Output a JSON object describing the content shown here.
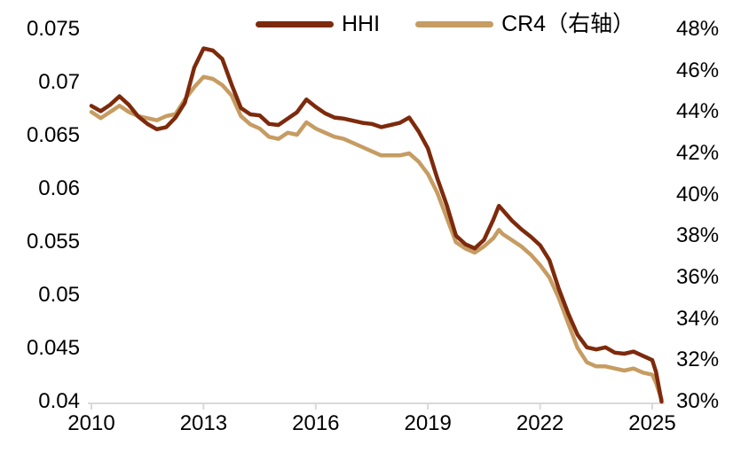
{
  "legend": {
    "hhi_label": "HHI",
    "cr4_label": "CR4（右轴）"
  },
  "chart_data": {
    "type": "line",
    "title": "",
    "grid": false,
    "legend_position": "top",
    "axis_line_color": "#D9D9D9",
    "text_color": "#000000",
    "x_tick_years": [
      2010,
      2013,
      2016,
      2019,
      2022,
      2025
    ],
    "x_tick_labels": [
      "2010",
      "2013",
      "2016",
      "2019",
      "2022",
      "2025"
    ],
    "x_range": [
      2010,
      2025.3
    ],
    "left_axis": {
      "min": 0.04,
      "max": 0.075,
      "labels": [
        "0.075",
        "0.07",
        "0.065",
        "0.06",
        "0.055",
        "0.05",
        "0.045",
        "0.04"
      ],
      "label_values": [
        0.075,
        0.07,
        0.065,
        0.06,
        0.055,
        0.05,
        0.045,
        0.04
      ]
    },
    "right_axis": {
      "min": 30,
      "max": 48,
      "labels": [
        "48%",
        "46%",
        "44%",
        "42%",
        "40%",
        "38%",
        "36%",
        "34%",
        "32%",
        "30%"
      ],
      "label_values": [
        48,
        46,
        44,
        42,
        40,
        38,
        36,
        34,
        32,
        30
      ]
    },
    "x": [
      2010.0,
      2010.25,
      2010.5,
      2010.75,
      2011.0,
      2011.25,
      2011.5,
      2011.75,
      2012.0,
      2012.25,
      2012.5,
      2012.75,
      2013.0,
      2013.25,
      2013.5,
      2013.75,
      2014.0,
      2014.25,
      2014.5,
      2014.75,
      2015.0,
      2015.25,
      2015.5,
      2015.75,
      2016.0,
      2016.25,
      2016.5,
      2016.75,
      2017.0,
      2017.25,
      2017.5,
      2017.75,
      2018.0,
      2018.25,
      2018.5,
      2018.75,
      2019.0,
      2019.25,
      2019.5,
      2019.75,
      2020.0,
      2020.25,
      2020.5,
      2020.75,
      2020.9,
      2021.0,
      2021.25,
      2021.5,
      2021.75,
      2022.0,
      2022.25,
      2022.5,
      2022.75,
      2023.0,
      2023.25,
      2023.5,
      2023.75,
      2024.0,
      2024.25,
      2024.5,
      2024.75,
      2025.0,
      2025.1,
      2025.25
    ],
    "series": [
      {
        "name": "HHI",
        "axis": "left",
        "color": "#7D2A0C",
        "values": [
          0.0678,
          0.0673,
          0.0679,
          0.0687,
          0.0679,
          0.0668,
          0.0661,
          0.0656,
          0.0658,
          0.0667,
          0.0681,
          0.0714,
          0.0732,
          0.073,
          0.0722,
          0.0698,
          0.0676,
          0.067,
          0.0669,
          0.0661,
          0.066,
          0.0666,
          0.0672,
          0.0684,
          0.0677,
          0.0671,
          0.0667,
          0.0666,
          0.0664,
          0.0662,
          0.0661,
          0.0658,
          0.066,
          0.0662,
          0.0667,
          0.0654,
          0.0638,
          0.061,
          0.0585,
          0.0556,
          0.0548,
          0.0544,
          0.0552,
          0.0571,
          0.0584,
          0.058,
          0.057,
          0.0562,
          0.0555,
          0.0547,
          0.0533,
          0.0506,
          0.0483,
          0.0463,
          0.0451,
          0.0449,
          0.0451,
          0.0446,
          0.0445,
          0.0447,
          0.0443,
          0.0439,
          0.0428,
          0.04
        ]
      },
      {
        "name": "CR4（右轴）",
        "axis": "right",
        "color": "#C69C62",
        "values": [
          44.0,
          43.7,
          44.0,
          44.3,
          44.0,
          43.8,
          43.7,
          43.6,
          43.8,
          43.9,
          44.6,
          45.2,
          45.7,
          45.6,
          45.3,
          44.8,
          43.8,
          43.4,
          43.2,
          42.8,
          42.7,
          43.0,
          42.9,
          43.5,
          43.2,
          43.0,
          42.8,
          42.7,
          42.5,
          42.3,
          42.1,
          41.9,
          41.9,
          41.9,
          42.0,
          41.6,
          41.0,
          40.1,
          38.9,
          37.7,
          37.4,
          37.2,
          37.5,
          37.9,
          38.3,
          38.1,
          37.8,
          37.5,
          37.1,
          36.6,
          36.0,
          35.0,
          33.8,
          32.6,
          31.9,
          31.7,
          31.7,
          31.6,
          31.5,
          31.6,
          31.4,
          31.3,
          30.9,
          30.1
        ]
      }
    ]
  }
}
